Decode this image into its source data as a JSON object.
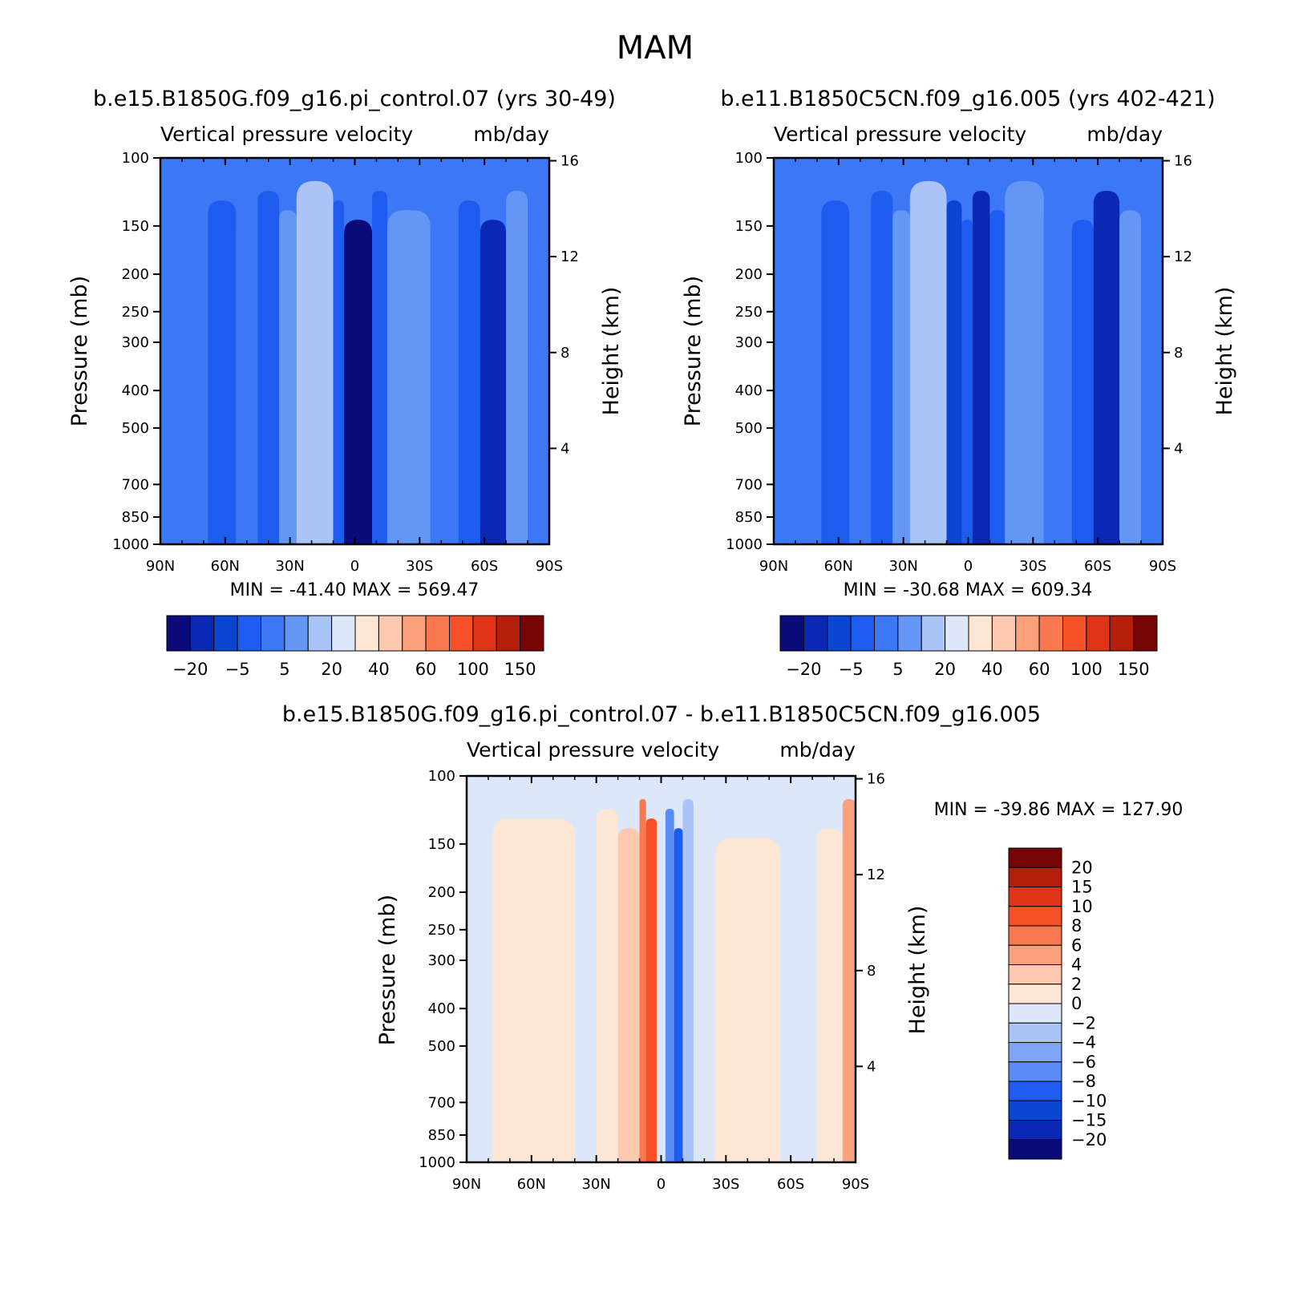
{
  "figure": {
    "title": "MAM"
  },
  "colors": {
    "abs_palette": [
      "#0a0a7a",
      "#0a28b4",
      "#0a46d2",
      "#1e5cf0",
      "#3c78f5",
      "#6496f5",
      "#aac4f8",
      "#dce8fa",
      "#fde6d4",
      "#fcc8b0",
      "#faa07a",
      "#f87850",
      "#f55028",
      "#dc3414",
      "#b41e0a",
      "#780505"
    ],
    "diff_palette": [
      "#0a0a7a",
      "#0a28b4",
      "#0a46d2",
      "#1e5cf0",
      "#5a8cf5",
      "#7ea4f7",
      "#aac4f8",
      "#dce8fa",
      "#fde6d4",
      "#fcc8b0",
      "#faa07a",
      "#f87850",
      "#f55028",
      "#dc3414",
      "#b41e0a",
      "#780505"
    ]
  },
  "chart_data": [
    {
      "type": "heatmap",
      "case_title": "b.e15.B1850G.f09_g16.pi_control.07 (yrs 30-49)",
      "variable_label": "Vertical pressure velocity",
      "units_label": "mb/day",
      "ylabel": "Pressure (mb)",
      "y2label": "Height (km)",
      "x_ticks": [
        "90N",
        "60N",
        "30N",
        "0",
        "30S",
        "60S",
        "90S"
      ],
      "y_ticks": [
        100,
        150,
        200,
        250,
        300,
        400,
        500,
        700,
        850,
        1000
      ],
      "y2_ticks": [
        4,
        8,
        12,
        16
      ],
      "ylim": [
        1000,
        100
      ],
      "xlim": [
        90,
        -90
      ],
      "stats": "MIN = -41.40   MAX = 569.47",
      "colorbar_labels": [
        "-20",
        "-5",
        "5",
        "20",
        "40",
        "60",
        "100",
        "150"
      ],
      "field_bands": [
        {
          "lat_from": 90,
          "lat_to": 68,
          "level": 4
        },
        {
          "lat_from": 68,
          "lat_to": 55,
          "level": 3
        },
        {
          "lat_from": 55,
          "lat_to": 45,
          "level": 4
        },
        {
          "lat_from": 45,
          "lat_to": 35,
          "level": 3
        },
        {
          "lat_from": 35,
          "lat_to": 27,
          "level": 5
        },
        {
          "lat_from": 27,
          "lat_to": 10,
          "level": 6
        },
        {
          "lat_from": 10,
          "lat_to": 5,
          "level": 3
        },
        {
          "lat_from": 5,
          "lat_to": -8,
          "level": 0
        },
        {
          "lat_from": -8,
          "lat_to": -15,
          "level": 3
        },
        {
          "lat_from": -15,
          "lat_to": -35,
          "level": 5
        },
        {
          "lat_from": -35,
          "lat_to": -48,
          "level": 4
        },
        {
          "lat_from": -48,
          "lat_to": -58,
          "level": 3
        },
        {
          "lat_from": -58,
          "lat_to": -70,
          "level": 1
        },
        {
          "lat_from": -70,
          "lat_to": -80,
          "level": 5
        },
        {
          "lat_from": -80,
          "lat_to": -90,
          "level": 4
        }
      ]
    },
    {
      "type": "heatmap",
      "case_title": "b.e11.B1850C5CN.f09_g16.005 (yrs 402-421)",
      "variable_label": "Vertical pressure velocity",
      "units_label": "mb/day",
      "ylabel": "Pressure (mb)",
      "y2label": "Height (km)",
      "x_ticks": [
        "90N",
        "60N",
        "30N",
        "0",
        "30S",
        "60S",
        "90S"
      ],
      "y_ticks": [
        100,
        150,
        200,
        250,
        300,
        400,
        500,
        700,
        850,
        1000
      ],
      "y2_ticks": [
        4,
        8,
        12,
        16
      ],
      "ylim": [
        1000,
        100
      ],
      "xlim": [
        90,
        -90
      ],
      "stats": "MIN = -30.68   MAX = 609.34",
      "colorbar_labels": [
        "-20",
        "-5",
        "5",
        "20",
        "40",
        "60",
        "100",
        "150"
      ],
      "field_bands": [
        {
          "lat_from": 90,
          "lat_to": 68,
          "level": 4
        },
        {
          "lat_from": 68,
          "lat_to": 55,
          "level": 3
        },
        {
          "lat_from": 55,
          "lat_to": 45,
          "level": 4
        },
        {
          "lat_from": 45,
          "lat_to": 35,
          "level": 3
        },
        {
          "lat_from": 35,
          "lat_to": 27,
          "level": 5
        },
        {
          "lat_from": 27,
          "lat_to": 10,
          "level": 6
        },
        {
          "lat_from": 10,
          "lat_to": 3,
          "level": 2
        },
        {
          "lat_from": 3,
          "lat_to": -2,
          "level": 3
        },
        {
          "lat_from": -2,
          "lat_to": -10,
          "level": 1
        },
        {
          "lat_from": -10,
          "lat_to": -17,
          "level": 3
        },
        {
          "lat_from": -17,
          "lat_to": -35,
          "level": 5
        },
        {
          "lat_from": -35,
          "lat_to": -48,
          "level": 4
        },
        {
          "lat_from": -48,
          "lat_to": -58,
          "level": 3
        },
        {
          "lat_from": -58,
          "lat_to": -70,
          "level": 1
        },
        {
          "lat_from": -70,
          "lat_to": -80,
          "level": 5
        },
        {
          "lat_from": -80,
          "lat_to": -90,
          "level": 4
        }
      ]
    },
    {
      "type": "heatmap",
      "case_title": "b.e15.B1850G.f09_g16.pi_control.07 - b.e11.B1850C5CN.f09_g16.005",
      "variable_label": "Vertical pressure velocity",
      "units_label": "mb/day",
      "ylabel": "Pressure (mb)",
      "y2label": "Height (km)",
      "x_ticks": [
        "90N",
        "60N",
        "30N",
        "0",
        "30S",
        "60S",
        "90S"
      ],
      "y_ticks": [
        100,
        150,
        200,
        250,
        300,
        400,
        500,
        700,
        850,
        1000
      ],
      "y2_ticks": [
        4,
        8,
        12,
        16
      ],
      "ylim": [
        1000,
        100
      ],
      "xlim": [
        90,
        -90
      ],
      "stats": "MIN = -39.86   MAX = 127.90",
      "colorbar_labels": [
        "20",
        "15",
        "10",
        "8",
        "6",
        "4",
        "2",
        "0",
        "-2",
        "-4",
        "-6",
        "-8",
        "-10",
        "-15",
        "-20"
      ],
      "field_bands": [
        {
          "lat_from": 90,
          "lat_to": 78,
          "level": 7
        },
        {
          "lat_from": 78,
          "lat_to": 40,
          "level": 8
        },
        {
          "lat_from": 40,
          "lat_to": 30,
          "level": 7
        },
        {
          "lat_from": 30,
          "lat_to": 20,
          "level": 8
        },
        {
          "lat_from": 20,
          "lat_to": 10,
          "level": 9
        },
        {
          "lat_from": 10,
          "lat_to": 7,
          "level": 11
        },
        {
          "lat_from": 7,
          "lat_to": 2,
          "level": 12
        },
        {
          "lat_from": 2,
          "lat_to": -2,
          "level": 7
        },
        {
          "lat_from": -2,
          "lat_to": -6,
          "level": 4
        },
        {
          "lat_from": -6,
          "lat_to": -10,
          "level": 3
        },
        {
          "lat_from": -10,
          "lat_to": -15,
          "level": 6
        },
        {
          "lat_from": -15,
          "lat_to": -25,
          "level": 7
        },
        {
          "lat_from": -25,
          "lat_to": -55,
          "level": 8
        },
        {
          "lat_from": -55,
          "lat_to": -72,
          "level": 7
        },
        {
          "lat_from": -72,
          "lat_to": -84,
          "level": 8
        },
        {
          "lat_from": -84,
          "lat_to": -90,
          "level": 10
        }
      ]
    }
  ]
}
